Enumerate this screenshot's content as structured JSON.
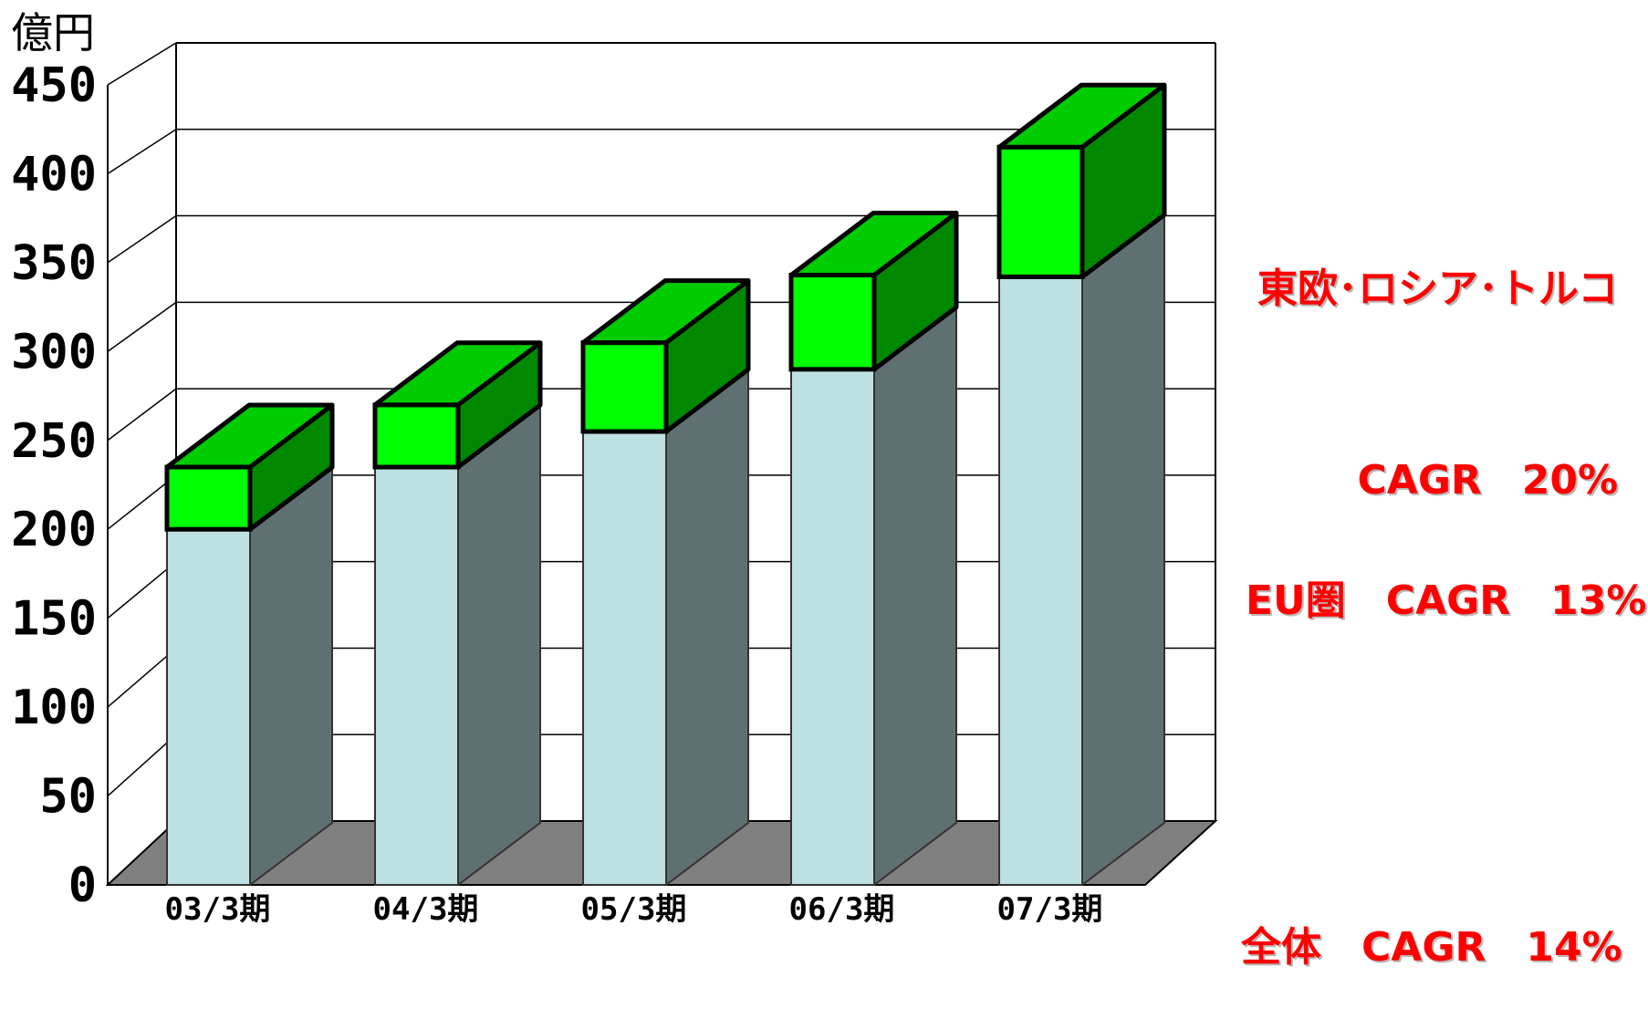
{
  "chart_data": {
    "type": "bar",
    "stacked": true,
    "three_d": true,
    "unit_label": "億円",
    "categories": [
      "03/3期",
      "04/3期",
      "05/3期",
      "06/3期",
      "07/3期"
    ],
    "series": [
      {
        "name": "",
        "values": [
          200,
          235,
          255,
          290,
          342
        ]
      },
      {
        "name": "",
        "values": [
          35,
          35,
          50,
          53,
          73
        ]
      }
    ],
    "ylim": [
      0,
      450
    ],
    "yticks": [
      0,
      50,
      100,
      150,
      200,
      250,
      300,
      350,
      400,
      450
    ],
    "grid": true,
    "colors": {
      "base_front": "#bde0e3",
      "base_side": "#5e7072",
      "top_front": "#00ff00",
      "top_side": "#008800",
      "top_cap": "#00cc00",
      "floor": "#808080",
      "annotation": "#ff0000"
    },
    "annotations": [
      {
        "id": "east",
        "lines": [
          "東欧･ロシア･トルコ",
          "CAGR　20%"
        ]
      },
      {
        "id": "eu",
        "lines": [
          "EU圏　CAGR　13%"
        ]
      },
      {
        "id": "total",
        "lines": [
          "全体　CAGR　14%"
        ]
      }
    ]
  }
}
